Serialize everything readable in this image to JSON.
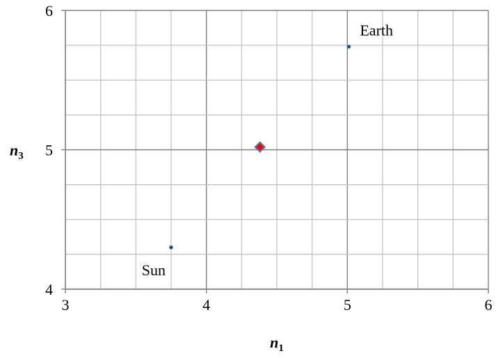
{
  "chart_data": {
    "type": "scatter",
    "title": "",
    "xlabel": {
      "base": "n",
      "sub": "1"
    },
    "ylabel": {
      "base": "n",
      "sub": "3"
    },
    "xlim": [
      3,
      6
    ],
    "ylim": [
      4,
      6
    ],
    "xticks": [
      3,
      4,
      5,
      6
    ],
    "yticks": [
      4,
      5,
      6
    ],
    "x_minor_step": 0.25,
    "y_minor_step": 0.25,
    "grid": true,
    "series": [
      {
        "label": "Sun",
        "x": 3.75,
        "y": 4.3,
        "marker": "dot",
        "color": "#1f3a68"
      },
      {
        "label": "Earth",
        "x": 5.01,
        "y": 5.74,
        "marker": "dot",
        "color": "#1f3a68"
      },
      {
        "label": "",
        "x": 4.38,
        "y": 5.02,
        "marker": "diamond",
        "color": "#ff0000"
      }
    ],
    "annotations": [
      {
        "text": "Sun",
        "anchor": "bottom-left"
      },
      {
        "text": "Earth",
        "anchor": "top-right"
      }
    ]
  }
}
